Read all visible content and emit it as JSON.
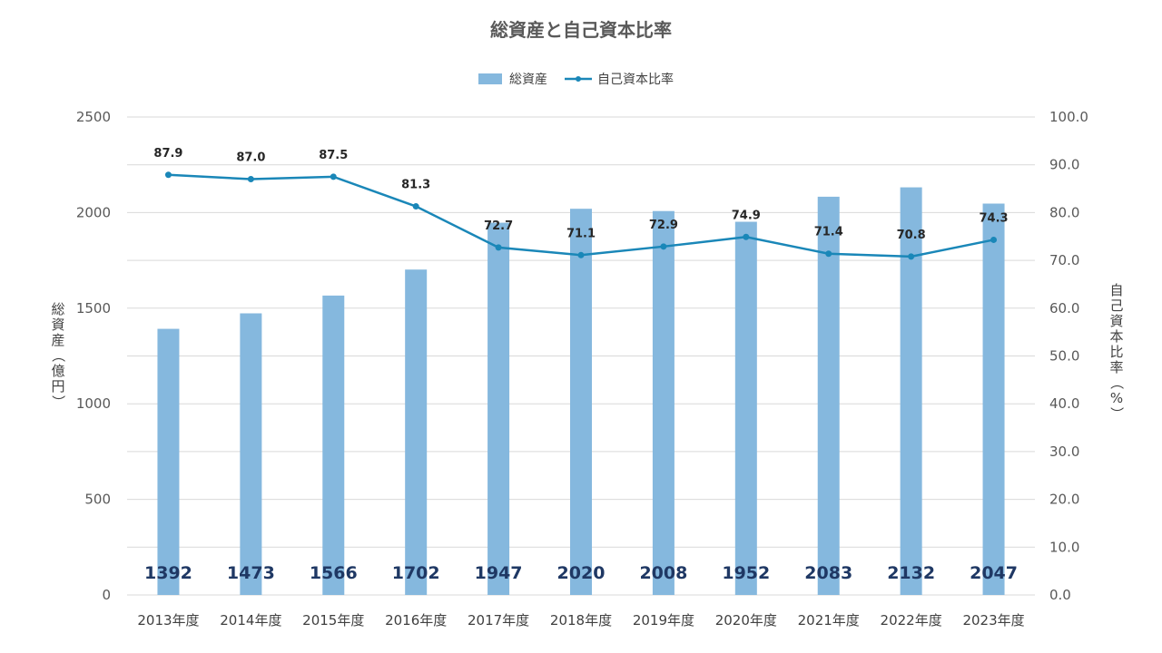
{
  "chart_data": {
    "type": "bar+line",
    "title": "総資産と自己資本比率",
    "categories": [
      "2013年度",
      "2014年度",
      "2015年度",
      "2016年度",
      "2017年度",
      "2018年度",
      "2019年度",
      "2020年度",
      "2021年度",
      "2022年度",
      "2023年度"
    ],
    "series": [
      {
        "name": "総資産",
        "type": "bar",
        "axis": "left",
        "color": "#85b8de",
        "values": [
          1392,
          1473,
          1566,
          1702,
          1947,
          2020,
          2008,
          1952,
          2083,
          2132,
          2047
        ]
      },
      {
        "name": "自己資本比率",
        "type": "line",
        "axis": "right",
        "color": "#1a87b8",
        "values": [
          87.9,
          87.0,
          87.5,
          81.3,
          72.7,
          71.1,
          72.9,
          74.9,
          71.4,
          70.8,
          74.3
        ]
      }
    ],
    "y_left": {
      "label": "総資産（億円）",
      "ylim": [
        0,
        2500
      ],
      "ticks": [
        "0",
        "500",
        "1000",
        "1500",
        "2000",
        "2500"
      ]
    },
    "y_right": {
      "label": "自己資本比率（%）",
      "ylim": [
        0,
        100
      ],
      "ticks": [
        "0.0",
        "10.0",
        "20.0",
        "30.0",
        "40.0",
        "50.0",
        "60.0",
        "70.0",
        "80.0",
        "90.0",
        "100.0"
      ]
    },
    "grid": true,
    "legend": "top-center"
  }
}
